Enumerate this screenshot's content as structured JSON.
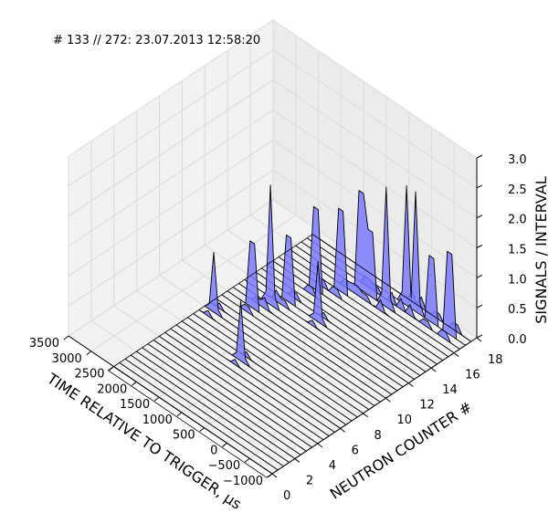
{
  "chart_data": {
    "type": "area",
    "title": "# 133 // 272: 23.07.2013 12:58:20",
    "xlabel": "TIME RELATIVE TO TRIGGER, μs",
    "ylabel": "NEUTRON COUNTER #",
    "zlabel": "SIGNALS / INTERVAL",
    "xlim": [
      -1000,
      3500
    ],
    "ylim": [
      0,
      18
    ],
    "zlim": [
      0.0,
      3.0
    ],
    "x_ticks": [
      "−1000",
      "−500",
      "0",
      "500",
      "1000",
      "1500",
      "2000",
      "2500",
      "3000",
      "3500"
    ],
    "y_ticks": [
      "0",
      "2",
      "4",
      "6",
      "8",
      "10",
      "12",
      "14",
      "16",
      "18"
    ],
    "z_ticks": [
      "0.0",
      "0.5",
      "1.0",
      "1.5",
      "2.0",
      "2.5",
      "3.0"
    ],
    "grid": true,
    "series_color": "#0000ff",
    "peaks": [
      {
        "counter": 17,
        "time": -650,
        "signals": 2.5
      },
      {
        "counter": 17,
        "time": -250,
        "signals": 2.0
      },
      {
        "counter": 17,
        "time": 100,
        "signals": 2.0
      },
      {
        "counter": 17,
        "time": 300,
        "signals": 2.0
      },
      {
        "counter": 16,
        "time": 500,
        "signals": 2.0
      },
      {
        "counter": 16,
        "time": 850,
        "signals": 2.0
      },
      {
        "counter": 16,
        "time": 1050,
        "signals": 3.0
      },
      {
        "counter": 15,
        "time": 1250,
        "signals": 2.5
      },
      {
        "counter": 14,
        "time": 1550,
        "signals": 2.5
      },
      {
        "counter": 12,
        "time": 1650,
        "signals": 2.0
      },
      {
        "counter": 11,
        "time": 1800,
        "signals": 2.0
      },
      {
        "counter": 10,
        "time": 1950,
        "signals": 2.0
      },
      {
        "counter": 12,
        "time": 1000,
        "signals": 1.0
      },
      {
        "counter": 6,
        "time": 1200,
        "signals": 1.0
      },
      {
        "counter": 8,
        "time": 2300,
        "signals": 1.0
      }
    ]
  }
}
